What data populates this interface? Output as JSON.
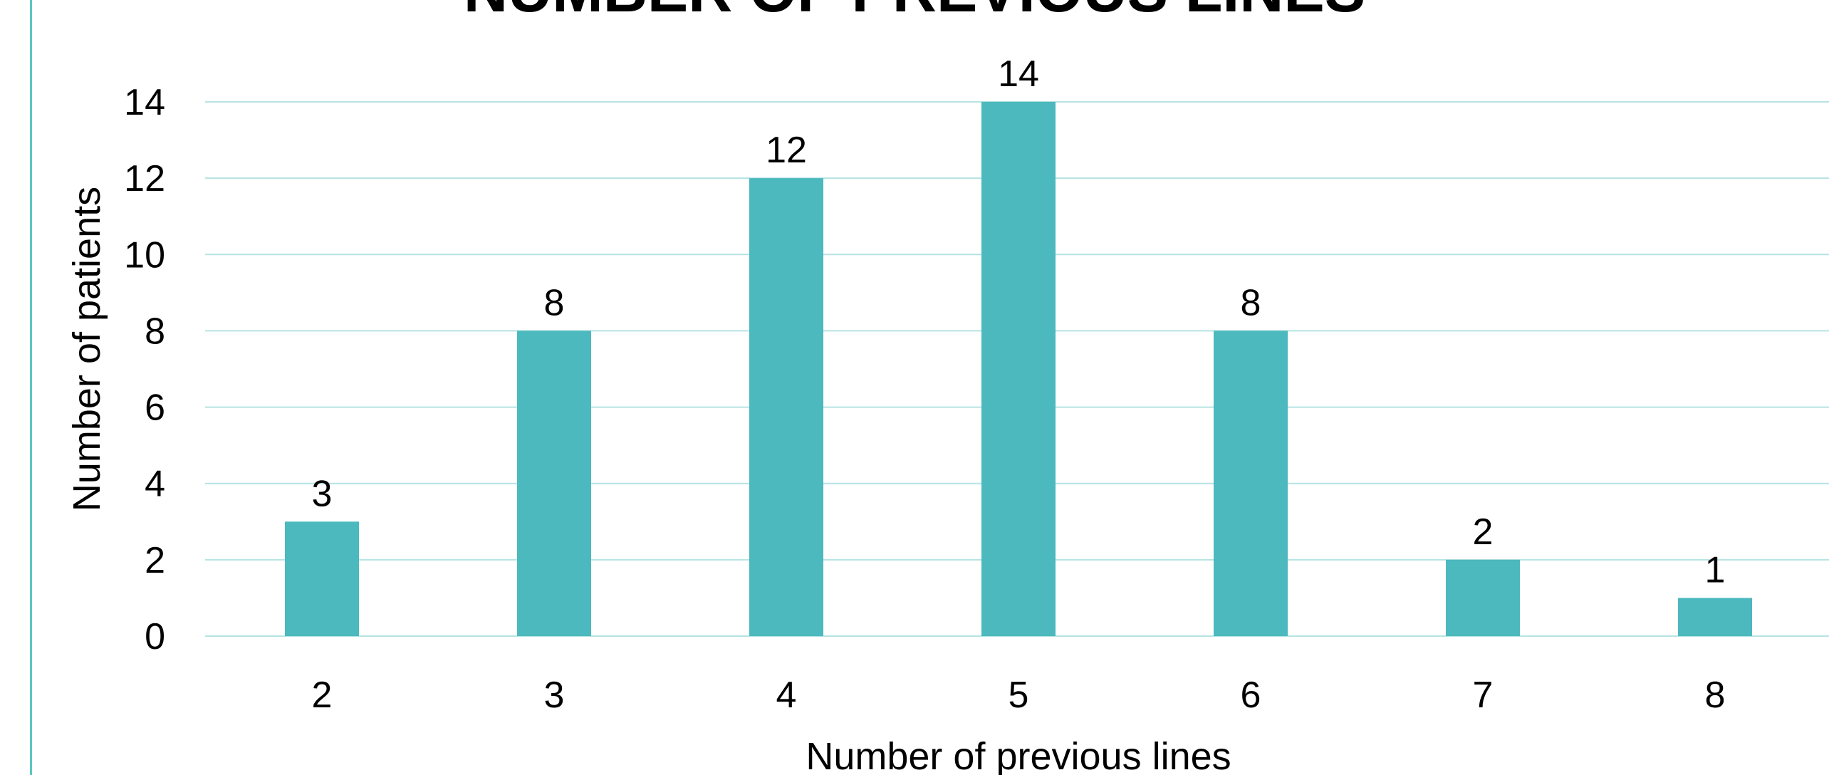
{
  "chart_data": {
    "type": "bar",
    "title": "NUMBER OF PREVIOUS LINES",
    "xlabel": "Number of previous lines",
    "ylabel": "Number of patients",
    "categories": [
      "2",
      "3",
      "4",
      "5",
      "6",
      "7",
      "8"
    ],
    "values": [
      3,
      8,
      12,
      14,
      8,
      2,
      1
    ],
    "data_labels": [
      "3",
      "8",
      "12",
      "14",
      "8",
      "2",
      "1"
    ],
    "y_ticks": [
      "0",
      "2",
      "4",
      "6",
      "8",
      "10",
      "12",
      "14"
    ],
    "ylim": [
      0,
      14
    ],
    "grid": true,
    "legend": "none",
    "colors": {
      "bar": "#4bb9bd",
      "grid": "#b6e3e3",
      "frame": "#5bc8c3"
    }
  }
}
